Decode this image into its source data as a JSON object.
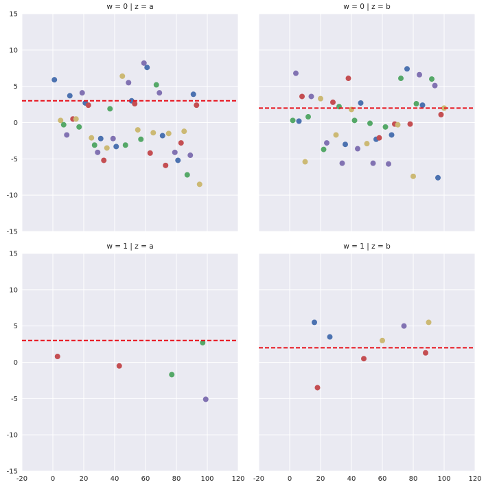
{
  "colors": {
    "background": "#EAEAF2",
    "grid": "#FFFFFF",
    "refline": "#E8101A",
    "blue": "#4C72B0",
    "red": "#C44E52",
    "yellow": "#CCB974",
    "green": "#55A868",
    "purple": "#8172B2"
  },
  "chart_data": [
    {
      "type": "scatter",
      "title": "w = 0 | z = a",
      "xlim": [
        -20,
        120
      ],
      "ylim": [
        -15,
        15
      ],
      "xticks": [
        "-20",
        "0",
        "20",
        "40",
        "60",
        "80",
        "100",
        "120"
      ],
      "yticks": [
        "-15",
        "-10",
        "-5",
        "0",
        "5",
        "10",
        "15"
      ],
      "grid": true,
      "hline": 3,
      "points": [
        {
          "x": 1,
          "y": 5.9,
          "c": "blue"
        },
        {
          "x": 5,
          "y": 0.3,
          "c": "yellow"
        },
        {
          "x": 7,
          "y": -0.3,
          "c": "green"
        },
        {
          "x": 9,
          "y": -1.7,
          "c": "purple"
        },
        {
          "x": 11,
          "y": 3.7,
          "c": "blue"
        },
        {
          "x": 13,
          "y": 0.5,
          "c": "red"
        },
        {
          "x": 15,
          "y": 0.5,
          "c": "yellow"
        },
        {
          "x": 17,
          "y": -0.6,
          "c": "green"
        },
        {
          "x": 19,
          "y": 4.1,
          "c": "purple"
        },
        {
          "x": 21,
          "y": 2.7,
          "c": "blue"
        },
        {
          "x": 23,
          "y": 2.4,
          "c": "red"
        },
        {
          "x": 25,
          "y": -2.1,
          "c": "yellow"
        },
        {
          "x": 27,
          "y": -3.1,
          "c": "green"
        },
        {
          "x": 29,
          "y": -4.1,
          "c": "purple"
        },
        {
          "x": 31,
          "y": -2.2,
          "c": "blue"
        },
        {
          "x": 33,
          "y": -5.2,
          "c": "red"
        },
        {
          "x": 35,
          "y": -3.5,
          "c": "yellow"
        },
        {
          "x": 37,
          "y": 1.9,
          "c": "green"
        },
        {
          "x": 39,
          "y": -2.2,
          "c": "purple"
        },
        {
          "x": 41,
          "y": -3.3,
          "c": "blue"
        },
        {
          "x": 45,
          "y": 6.4,
          "c": "yellow"
        },
        {
          "x": 47,
          "y": -3.1,
          "c": "green"
        },
        {
          "x": 49,
          "y": 5.5,
          "c": "purple"
        },
        {
          "x": 51,
          "y": 3.0,
          "c": "blue"
        },
        {
          "x": 53,
          "y": 2.6,
          "c": "red"
        },
        {
          "x": 55,
          "y": -1.0,
          "c": "yellow"
        },
        {
          "x": 57,
          "y": -2.3,
          "c": "green"
        },
        {
          "x": 59,
          "y": 8.2,
          "c": "purple"
        },
        {
          "x": 61,
          "y": 7.6,
          "c": "blue"
        },
        {
          "x": 63,
          "y": -4.2,
          "c": "red"
        },
        {
          "x": 65,
          "y": -1.4,
          "c": "yellow"
        },
        {
          "x": 67,
          "y": 5.2,
          "c": "green"
        },
        {
          "x": 69,
          "y": 4.1,
          "c": "purple"
        },
        {
          "x": 71,
          "y": -1.8,
          "c": "blue"
        },
        {
          "x": 73,
          "y": -5.9,
          "c": "red"
        },
        {
          "x": 75,
          "y": -1.5,
          "c": "yellow"
        },
        {
          "x": 79,
          "y": -4.1,
          "c": "purple"
        },
        {
          "x": 81,
          "y": -5.2,
          "c": "blue"
        },
        {
          "x": 83,
          "y": -2.8,
          "c": "red"
        },
        {
          "x": 85,
          "y": -1.2,
          "c": "yellow"
        },
        {
          "x": 87,
          "y": -7.2,
          "c": "green"
        },
        {
          "x": 89,
          "y": -4.5,
          "c": "purple"
        },
        {
          "x": 91,
          "y": 3.9,
          "c": "blue"
        },
        {
          "x": 93,
          "y": 2.4,
          "c": "red"
        },
        {
          "x": 95,
          "y": -8.5,
          "c": "yellow"
        }
      ]
    },
    {
      "type": "scatter",
      "title": "w = 0 | z = b",
      "xlim": [
        -20,
        120
      ],
      "ylim": [
        -15,
        15
      ],
      "xticks": [
        "-20",
        "0",
        "20",
        "40",
        "60",
        "80",
        "100",
        "120"
      ],
      "yticks": [
        "-15",
        "-10",
        "-5",
        "0",
        "5",
        "10",
        "15"
      ],
      "grid": true,
      "hline": 2,
      "points": [
        {
          "x": 2,
          "y": 0.3,
          "c": "green"
        },
        {
          "x": 4,
          "y": 6.8,
          "c": "purple"
        },
        {
          "x": 6,
          "y": 0.2,
          "c": "blue"
        },
        {
          "x": 8,
          "y": 3.6,
          "c": "red"
        },
        {
          "x": 10,
          "y": -5.4,
          "c": "yellow"
        },
        {
          "x": 12,
          "y": 0.8,
          "c": "green"
        },
        {
          "x": 14,
          "y": 3.6,
          "c": "purple"
        },
        {
          "x": 20,
          "y": 3.3,
          "c": "yellow"
        },
        {
          "x": 22,
          "y": -3.7,
          "c": "green"
        },
        {
          "x": 24,
          "y": -2.8,
          "c": "purple"
        },
        {
          "x": 28,
          "y": 2.8,
          "c": "red"
        },
        {
          "x": 30,
          "y": -1.7,
          "c": "yellow"
        },
        {
          "x": 32,
          "y": 2.2,
          "c": "green"
        },
        {
          "x": 34,
          "y": -5.6,
          "c": "purple"
        },
        {
          "x": 36,
          "y": -3.0,
          "c": "blue"
        },
        {
          "x": 38,
          "y": 6.1,
          "c": "red"
        },
        {
          "x": 40,
          "y": 1.8,
          "c": "yellow"
        },
        {
          "x": 42,
          "y": 0.3,
          "c": "green"
        },
        {
          "x": 44,
          "y": -3.6,
          "c": "purple"
        },
        {
          "x": 46,
          "y": 2.7,
          "c": "blue"
        },
        {
          "x": 50,
          "y": -2.9,
          "c": "yellow"
        },
        {
          "x": 52,
          "y": -0.1,
          "c": "green"
        },
        {
          "x": 54,
          "y": -5.6,
          "c": "purple"
        },
        {
          "x": 56,
          "y": -2.3,
          "c": "blue"
        },
        {
          "x": 58,
          "y": -2.1,
          "c": "red"
        },
        {
          "x": 62,
          "y": -0.6,
          "c": "green"
        },
        {
          "x": 64,
          "y": -5.7,
          "c": "purple"
        },
        {
          "x": 66,
          "y": -1.7,
          "c": "blue"
        },
        {
          "x": 68,
          "y": -0.2,
          "c": "red"
        },
        {
          "x": 70,
          "y": -0.3,
          "c": "yellow"
        },
        {
          "x": 72,
          "y": 6.1,
          "c": "green"
        },
        {
          "x": 76,
          "y": 7.4,
          "c": "blue"
        },
        {
          "x": 78,
          "y": -0.2,
          "c": "red"
        },
        {
          "x": 80,
          "y": -7.4,
          "c": "yellow"
        },
        {
          "x": 82,
          "y": 2.6,
          "c": "green"
        },
        {
          "x": 84,
          "y": 6.6,
          "c": "purple"
        },
        {
          "x": 86,
          "y": 2.4,
          "c": "blue"
        },
        {
          "x": 92,
          "y": 6.0,
          "c": "green"
        },
        {
          "x": 94,
          "y": 5.1,
          "c": "purple"
        },
        {
          "x": 96,
          "y": -7.6,
          "c": "blue"
        },
        {
          "x": 98,
          "y": 1.1,
          "c": "red"
        },
        {
          "x": 100,
          "y": 2.0,
          "c": "yellow"
        }
      ]
    },
    {
      "type": "scatter",
      "title": "w = 1 | z = a",
      "xlim": [
        -20,
        120
      ],
      "ylim": [
        -15,
        15
      ],
      "xticks": [
        "-20",
        "0",
        "20",
        "40",
        "60",
        "80",
        "100",
        "120"
      ],
      "yticks": [
        "-15",
        "-10",
        "-5",
        "0",
        "5",
        "10",
        "15"
      ],
      "grid": true,
      "hline": 3,
      "points": [
        {
          "x": 3,
          "y": 0.8,
          "c": "red"
        },
        {
          "x": 43,
          "y": -0.5,
          "c": "red"
        },
        {
          "x": 77,
          "y": -1.7,
          "c": "green"
        },
        {
          "x": 97,
          "y": 2.7,
          "c": "green"
        },
        {
          "x": 99,
          "y": -5.1,
          "c": "purple"
        }
      ]
    },
    {
      "type": "scatter",
      "title": "w = 1 | z = b",
      "xlim": [
        -20,
        120
      ],
      "ylim": [
        -15,
        15
      ],
      "xticks": [
        "-20",
        "0",
        "20",
        "40",
        "60",
        "80",
        "100",
        "120"
      ],
      "yticks": [
        "-15",
        "-10",
        "-5",
        "0",
        "5",
        "10",
        "15"
      ],
      "grid": true,
      "hline": 2,
      "points": [
        {
          "x": 16,
          "y": 5.5,
          "c": "blue"
        },
        {
          "x": 18,
          "y": -3.5,
          "c": "red"
        },
        {
          "x": 26,
          "y": 3.5,
          "c": "blue"
        },
        {
          "x": 48,
          "y": 0.5,
          "c": "red"
        },
        {
          "x": 60,
          "y": 3.0,
          "c": "yellow"
        },
        {
          "x": 74,
          "y": 5.0,
          "c": "purple"
        },
        {
          "x": 88,
          "y": 1.3,
          "c": "red"
        },
        {
          "x": 90,
          "y": 5.5,
          "c": "yellow"
        }
      ]
    }
  ]
}
